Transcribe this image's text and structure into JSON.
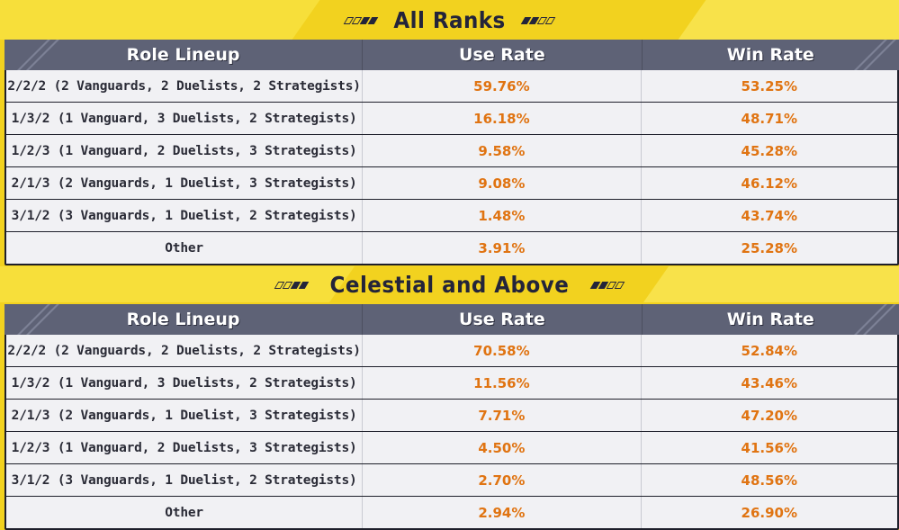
{
  "headers": {
    "role_lineup": "Role Lineup",
    "use_rate": "Use Rate",
    "win_rate": "Win Rate"
  },
  "sections": [
    {
      "title": "All Ranks",
      "rows": [
        {
          "lineup": "2/2/2 (2 Vanguards, 2 Duelists, 2 Strategists)",
          "use_rate": "59.76%",
          "win_rate": "53.25%"
        },
        {
          "lineup": "1/3/2 (1 Vanguard,  3 Duelists, 2 Strategists)",
          "use_rate": "16.18%",
          "win_rate": "48.71%"
        },
        {
          "lineup": "1/2/3 (1 Vanguard,  2 Duelists, 3 Strategists)",
          "use_rate": "9.58%",
          "win_rate": "45.28%"
        },
        {
          "lineup": "2/1/3 (2 Vanguards, 1 Duelist,  3 Strategists)",
          "use_rate": "9.08%",
          "win_rate": "46.12%"
        },
        {
          "lineup": "3/1/2 (3 Vanguards, 1 Duelist,  2 Strategists)",
          "use_rate": "1.48%",
          "win_rate": "43.74%"
        },
        {
          "lineup": "Other",
          "use_rate": "3.91%",
          "win_rate": "25.28%"
        }
      ]
    },
    {
      "title": "Celestial and Above",
      "rows": [
        {
          "lineup": "2/2/2 (2 Vanguards, 2 Duelists, 2 Strategists)",
          "use_rate": "70.58%",
          "win_rate": "52.84%"
        },
        {
          "lineup": "1/3/2 (1 Vanguard,  3 Duelists, 2 Strategists)",
          "use_rate": "11.56%",
          "win_rate": "43.46%"
        },
        {
          "lineup": "2/1/3 (2 Vanguards, 1 Duelist,  3 Strategists)",
          "use_rate": "7.71%",
          "win_rate": "47.20%"
        },
        {
          "lineup": "1/2/3 (1 Vanguard,  2 Duelists, 3 Strategists)",
          "use_rate": "4.50%",
          "win_rate": "41.56%"
        },
        {
          "lineup": "3/1/2 (3 Vanguards, 1 Duelist,  2 Strategists)",
          "use_rate": "2.70%",
          "win_rate": "48.56%"
        },
        {
          "lineup": "Other",
          "use_rate": "2.94%",
          "win_rate": "26.90%"
        }
      ]
    }
  ],
  "colors": {
    "background": "#f2d21f",
    "header_bg": "#5e6276",
    "row_bg": "#f1f1f4",
    "rate_text": "#e07412",
    "title_text": "#23243a"
  }
}
